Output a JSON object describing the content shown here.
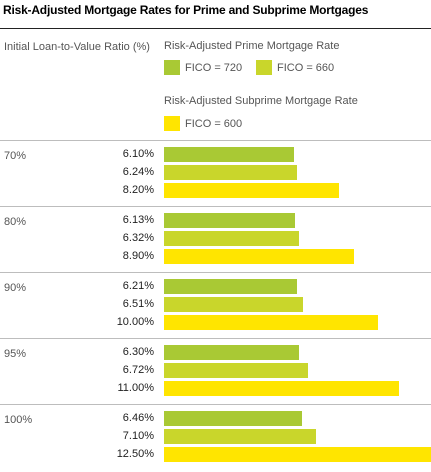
{
  "chart_data": {
    "type": "bar",
    "title": "Risk-Adjusted Mortgage Rates for Prime and Subprime Mortgages",
    "category_axis_label": "Initial Loan-to-Value Ratio (%)",
    "categories": [
      "70%",
      "80%",
      "90%",
      "95%",
      "100%"
    ],
    "legend_groups": [
      {
        "title": "Risk-Adjusted Prime Mortgage Rate",
        "series_names": [
          "FICO = 720",
          "FICO = 660"
        ]
      },
      {
        "title": "Risk-Adjusted Subprime Mortgage Rate",
        "series_names": [
          "FICO = 600"
        ]
      }
    ],
    "series": [
      {
        "name": "FICO = 720",
        "color": "#a9c934",
        "values": [
          6.1,
          6.13,
          6.21,
          6.3,
          6.46
        ],
        "labels": [
          "6.10%",
          "6.13%",
          "6.21%",
          "6.30%",
          "6.46%"
        ]
      },
      {
        "name": "FICO = 660",
        "color": "#c9d62b",
        "values": [
          6.24,
          6.32,
          6.51,
          6.72,
          7.1
        ],
        "labels": [
          "6.24%",
          "6.32%",
          "6.51%",
          "6.72%",
          "7.10%"
        ]
      },
      {
        "name": "FICO = 600",
        "color": "#ffe500",
        "values": [
          8.2,
          8.9,
          10.0,
          11.0,
          12.5
        ],
        "labels": [
          "8.20%",
          "8.90%",
          "10.00%",
          "11.00%",
          "12.50%"
        ]
      }
    ],
    "xlim": [
      0,
      12.5
    ],
    "orientation": "horizontal",
    "grid": false,
    "legend_position": "top"
  }
}
